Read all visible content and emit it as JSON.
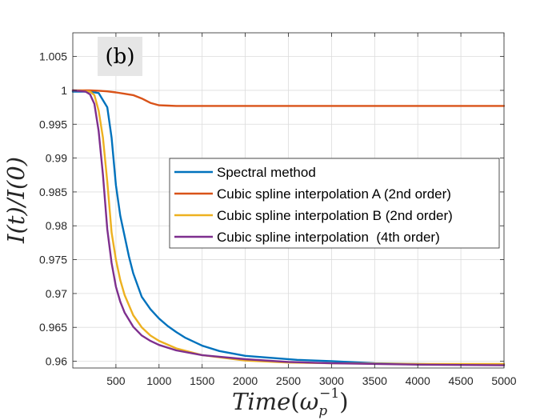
{
  "chart_data": {
    "type": "line",
    "panel_label": "(b)",
    "xlabel_main": "Time",
    "xlabel_paren_open": "(",
    "xlabel_omega": "ω",
    "xlabel_sub": "p",
    "xlabel_sup": "−1",
    "xlabel_paren_close": ")",
    "ylabel": "I(t)/I(0)",
    "xlim": [
      0,
      5000
    ],
    "ylim": [
      0.959,
      1.0085
    ],
    "xticks": [
      500,
      1000,
      1500,
      2000,
      2500,
      3000,
      3500,
      4000,
      4500,
      5000
    ],
    "xtick_labels": [
      "500",
      "1000",
      "1500",
      "2000",
      "2500",
      "3000",
      "3500",
      "4000",
      "4500",
      "5000"
    ],
    "yticks": [
      0.96,
      0.965,
      0.97,
      0.975,
      0.98,
      0.985,
      0.99,
      0.995,
      1,
      1.005
    ],
    "ytick_labels": [
      "0.96",
      "0.965",
      "0.97",
      "0.975",
      "0.98",
      "0.985",
      "0.99",
      "0.995",
      "1",
      "1.005"
    ],
    "grid": true,
    "legend_position": "center-right",
    "series": [
      {
        "name": "Spectral method",
        "color": "#0072BD",
        "x": [
          0,
          200,
          300,
          400,
          450,
          500,
          550,
          600,
          650,
          700,
          800,
          900,
          1000,
          1100,
          1200,
          1300,
          1500,
          1700,
          2000,
          2300,
          2600,
          3000,
          3500,
          4000,
          4500,
          5000
        ],
        "y": [
          0.9998,
          0.9998,
          0.9996,
          0.9975,
          0.993,
          0.986,
          0.9815,
          0.9785,
          0.9755,
          0.973,
          0.9695,
          0.9677,
          0.9663,
          0.9652,
          0.9643,
          0.9635,
          0.9623,
          0.9615,
          0.9608,
          0.9605,
          0.9602,
          0.96,
          0.9597,
          0.9596,
          0.9595,
          0.9595
        ]
      },
      {
        "name": "Cubic spline interpolation A (2nd order)",
        "color": "#D95319",
        "x": [
          0,
          200,
          300,
          400,
          500,
          600,
          700,
          800,
          900,
          1000,
          1100,
          1200,
          2000,
          3000,
          4000,
          5000
        ],
        "y": [
          1.0,
          1.0,
          0.99995,
          0.99985,
          0.9997,
          0.9995,
          0.9993,
          0.9988,
          0.99815,
          0.9978,
          0.99775,
          0.9977,
          0.9977,
          0.9977,
          0.9977,
          0.9977
        ]
      },
      {
        "name": "Cubic spline interpolation B (2nd order)",
        "color": "#EDB120",
        "x": [
          0,
          200,
          250,
          300,
          350,
          400,
          450,
          500,
          550,
          600,
          700,
          800,
          900,
          1000,
          1200,
          1500,
          2000,
          2500,
          3000,
          4000,
          5000
        ],
        "y": [
          1.0,
          0.9998,
          0.9993,
          0.997,
          0.993,
          0.9865,
          0.979,
          0.975,
          0.972,
          0.9698,
          0.9668,
          0.965,
          0.9638,
          0.963,
          0.9619,
          0.9609,
          0.9601,
          0.9598,
          0.9597,
          0.9596,
          0.9596
        ]
      },
      {
        "name": "Cubic spline interpolation  (4th order)",
        "color": "#7E2F8E",
        "x": [
          0,
          150,
          200,
          250,
          300,
          350,
          400,
          450,
          500,
          550,
          600,
          700,
          800,
          900,
          1000,
          1200,
          1500,
          2000,
          2500,
          3000,
          4000,
          5000
        ],
        "y": [
          1.0,
          0.9998,
          0.9994,
          0.998,
          0.994,
          0.9875,
          0.9795,
          0.9745,
          0.971,
          0.9688,
          0.9672,
          0.9651,
          0.9638,
          0.963,
          0.9624,
          0.9616,
          0.9609,
          0.9603,
          0.9599,
          0.9597,
          0.9595,
          0.9594
        ]
      }
    ]
  }
}
